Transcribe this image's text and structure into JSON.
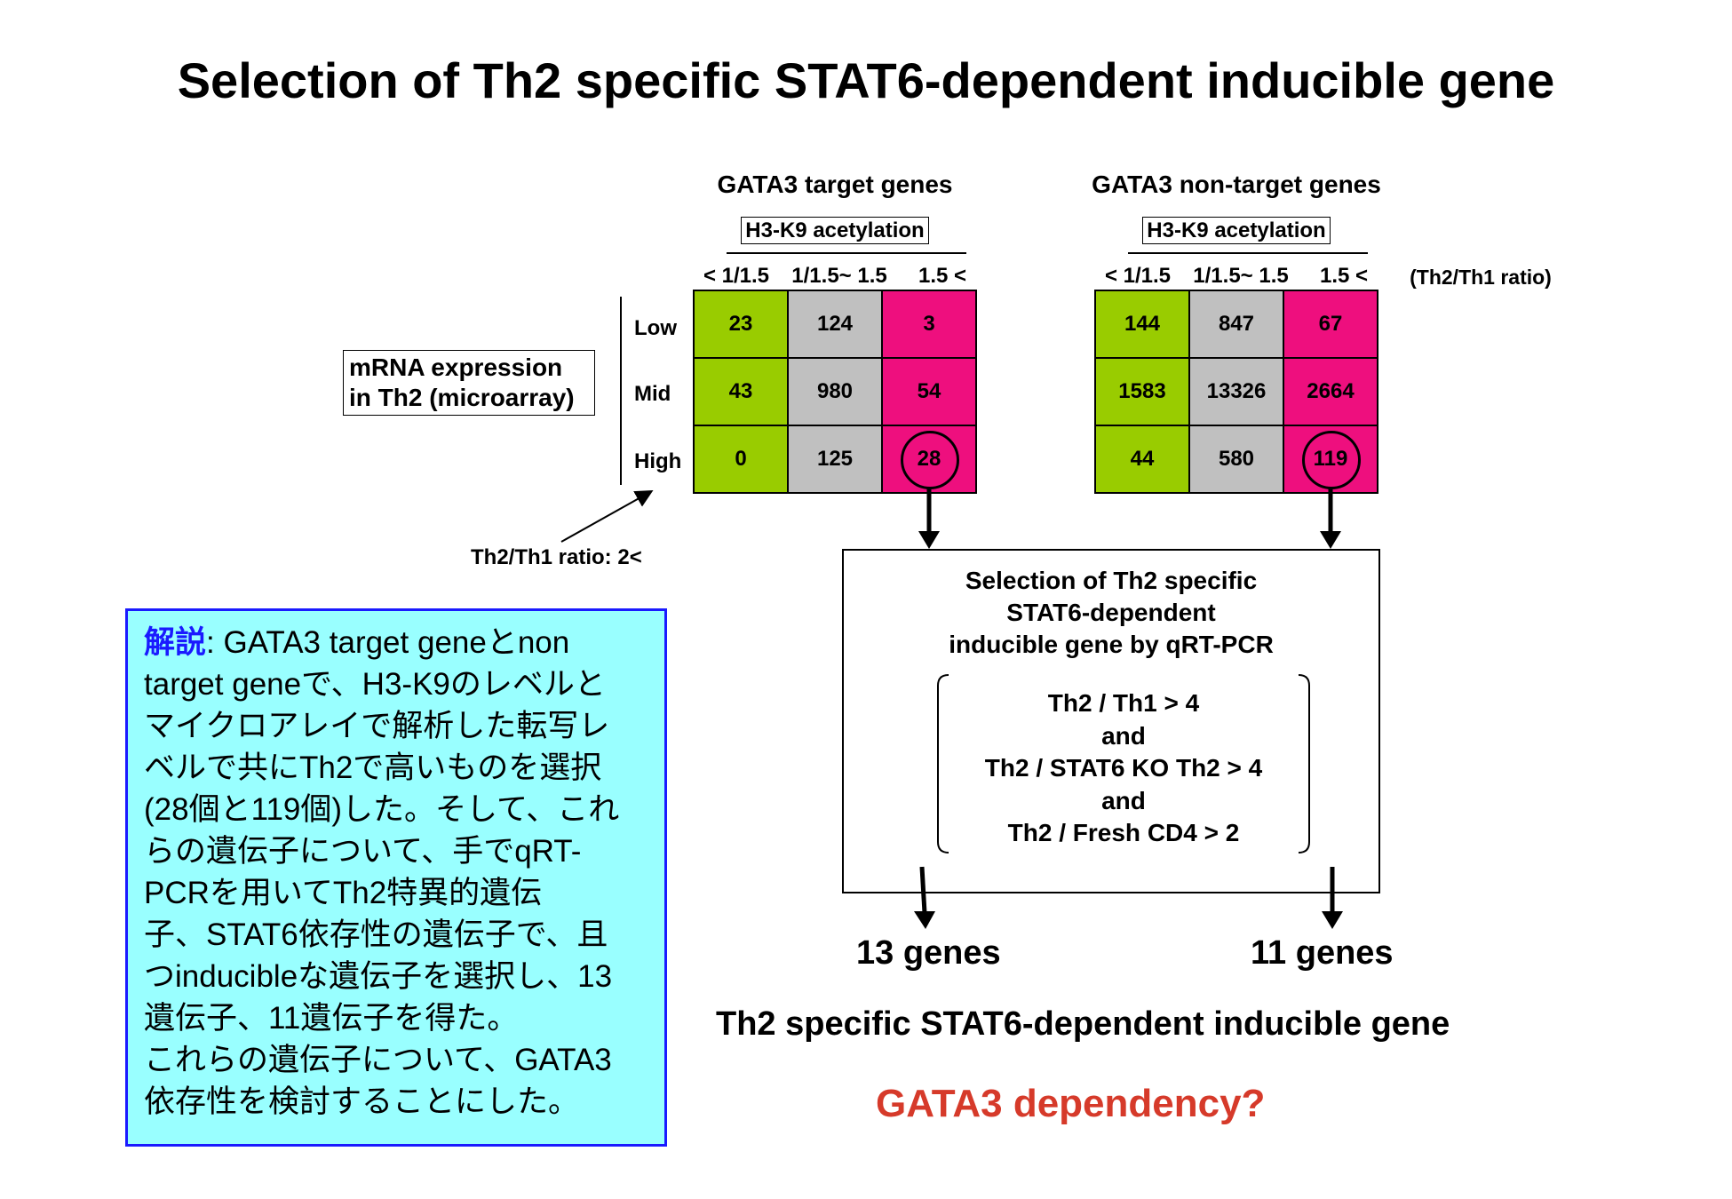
{
  "title": "Selection of Th2 specific STAT6-dependent inducible gene",
  "h3k9_label": "H3-K9 acetylation",
  "ratio_unit": "(Th2/Th1 ratio)",
  "column_headers": [
    "< 1/1.5",
    "1/1.5~ 1.5",
    "1.5 <"
  ],
  "row_labels": [
    "Low",
    "Mid",
    "High"
  ],
  "mrna_label": [
    "mRNA expression",
    "in Th2 (microarray)"
  ],
  "th2_th1_threshold": "Th2/Th1 ratio: 2<",
  "tables": [
    {
      "title": "GATA3 target genes",
      "rows": [
        [
          "23",
          "124",
          "3"
        ],
        [
          "43",
          "980",
          "54"
        ],
        [
          "0",
          "125",
          "28"
        ]
      ]
    },
    {
      "title": "GATA3 non-target genes",
      "rows": [
        [
          "144",
          "847",
          "67"
        ],
        [
          "1583",
          "13326",
          "2664"
        ],
        [
          "44",
          "580",
          "119"
        ]
      ]
    }
  ],
  "selection_box": {
    "title": [
      "Selection of Th2 specific",
      "STAT6-dependent",
      "inducible gene by qRT-PCR"
    ],
    "conditions": [
      "Th2 / Th1 > 4",
      "and",
      "Th2 / STAT6 KO Th2 > 4",
      "and",
      "Th2 / Fresh CD4 > 2"
    ]
  },
  "results": [
    "13 genes",
    "11 genes"
  ],
  "conclusion": "Th2 specific STAT6-dependent inducible gene",
  "question": "GATA3 dependency?",
  "note": {
    "keyword": "解説",
    "lines": [
      ": GATA3 target geneとnon",
      "target geneで、H3-K9のレベルと",
      "マイクロアレイで解析した転写レ",
      "ベルで共にTh2で高いものを選択",
      "(28個と119個)した。そして、これ",
      "らの遺伝子について、手でqRT-",
      "PCRを用いてTh2特異的遺伝",
      "子、STAT6依存性の遺伝子で、且",
      "つinducibleな遺伝子を選択し、13",
      "遺伝子、11遺伝子を得た。",
      "これらの遺伝子について、GATA3",
      "依存性を検討することにした。"
    ]
  },
  "colors": {
    "green": "#99cc00",
    "gray": "#c0c0c0",
    "magenta": "#ee0f7e",
    "question_red": "#d63a2a",
    "note_bg": "#99ffff",
    "note_border": "#1a1aff"
  }
}
